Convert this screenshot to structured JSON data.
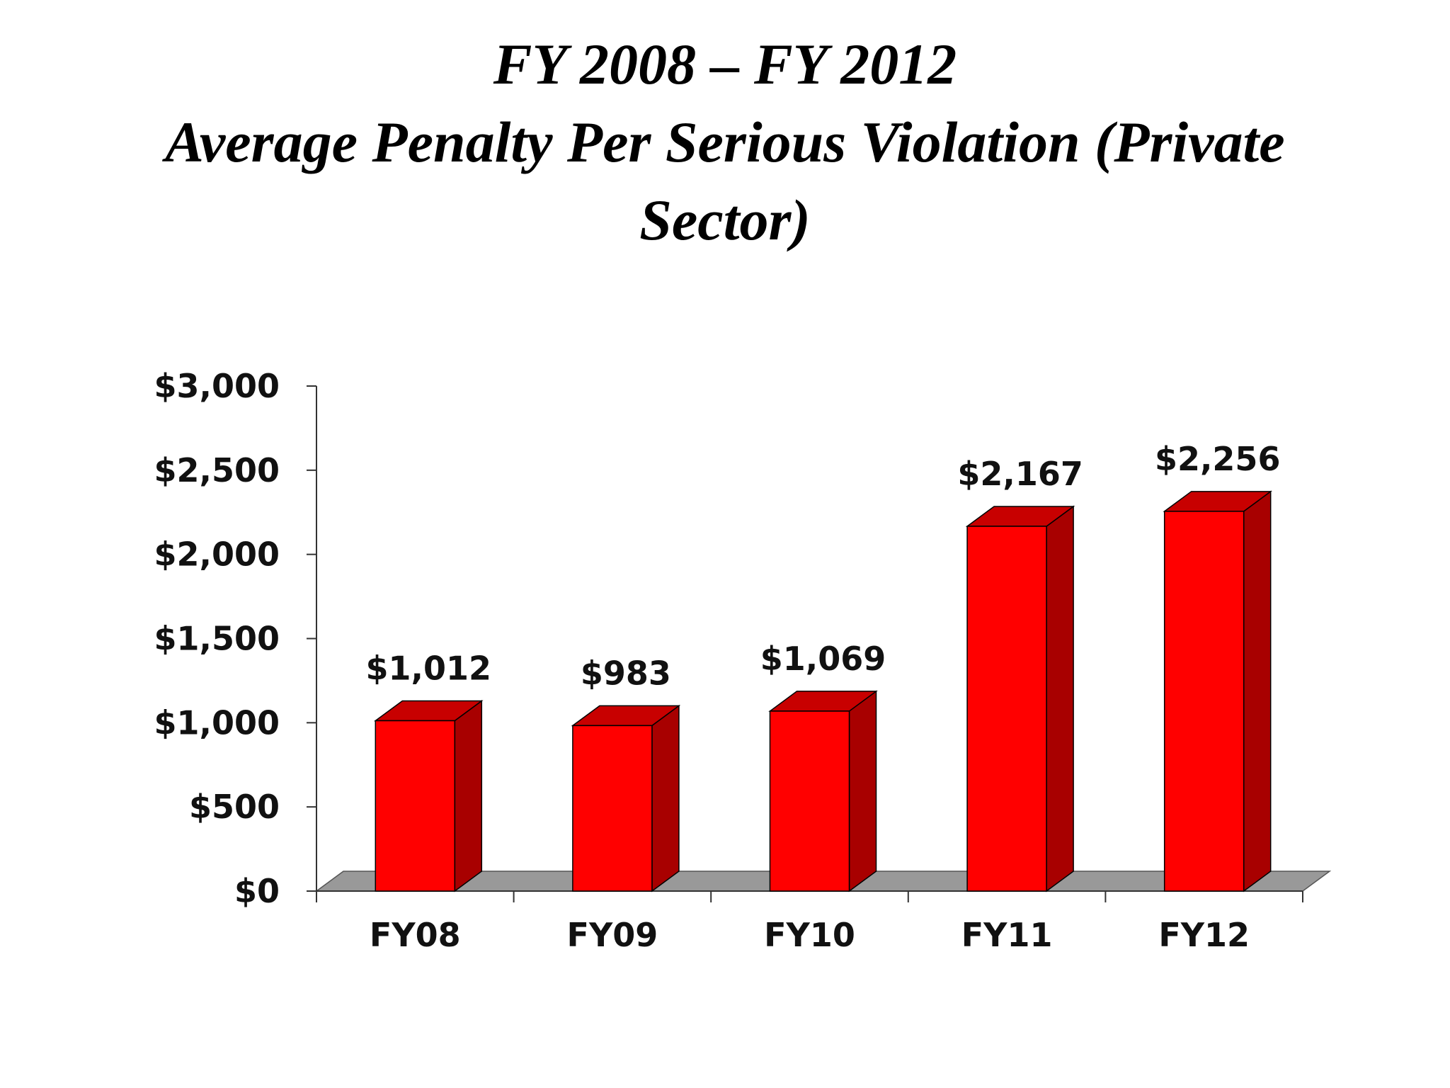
{
  "title_lines": [
    "FY 2008 – FY 2012",
    "Average Penalty Per Serious Violation (Private",
    "Sector)"
  ],
  "colors": {
    "bar_front": "#ff0000",
    "bar_side": "#a80000",
    "bar_top": "#c80000",
    "floor": "#999999",
    "axis": "#333333"
  },
  "chart_data": {
    "type": "bar",
    "style": "3d-column",
    "title": "FY 2008 – FY 2012 Average Penalty Per Serious Violation (Private Sector)",
    "categories": [
      "FY08",
      "FY09",
      "FY10",
      "FY11",
      "FY12"
    ],
    "values": [
      1012,
      983,
      1069,
      2167,
      2256
    ],
    "data_labels": [
      "$1,012",
      "$983",
      "$1,069",
      "$2,167",
      "$2,256"
    ],
    "ylim": [
      0,
      3000
    ],
    "yticks": [
      0,
      500,
      1000,
      1500,
      2000,
      2500,
      3000
    ],
    "ytick_labels": [
      "$0",
      "$500",
      "$1,000",
      "$1,500",
      "$2,000",
      "$2,500",
      "$3,000"
    ],
    "xlabel": "",
    "ylabel": "",
    "grid": false,
    "legend": "none"
  }
}
